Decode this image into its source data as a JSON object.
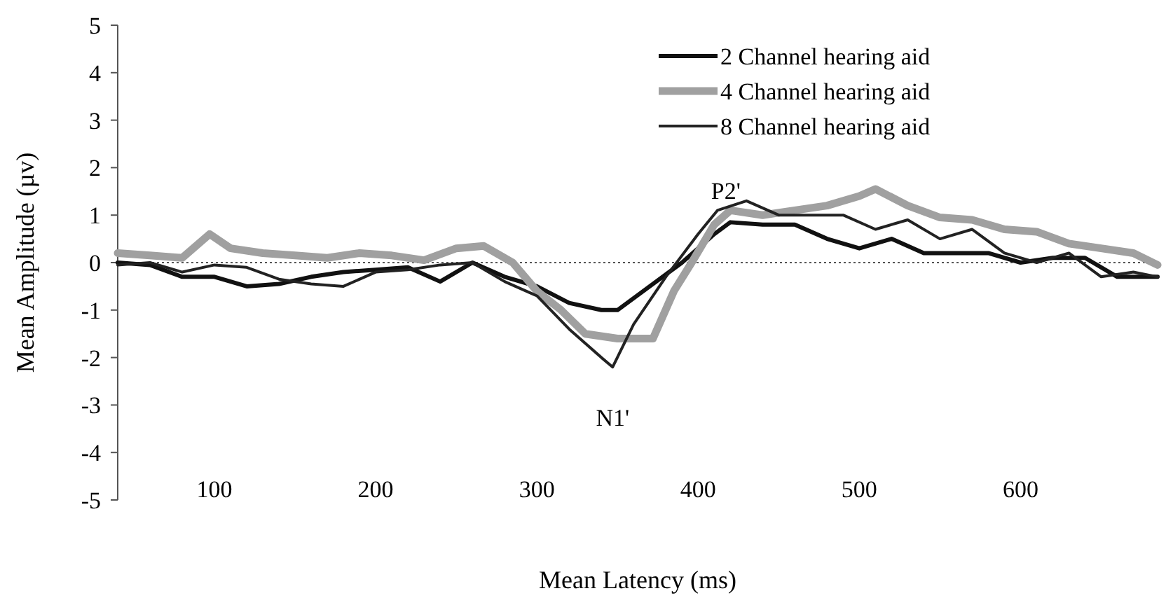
{
  "chart_data": {
    "type": "line",
    "xlabel": "Mean Latency (ms)",
    "ylabel": "Mean Amplitude (µv)",
    "xlim": [
      40,
      685
    ],
    "xticks": [
      100,
      200,
      300,
      400,
      500,
      600
    ],
    "ylim": [
      -5,
      5
    ],
    "yticks": [
      -5,
      -4,
      -3,
      -2,
      -1,
      0,
      1,
      2,
      3,
      4,
      5
    ],
    "grid": false,
    "legend": "top right",
    "line_style": "solid",
    "ref_lines": [
      {
        "axis": "y",
        "value": 0,
        "line_style": "dotted",
        "color": "#555555"
      }
    ],
    "annotations": [
      {
        "text": "N1'",
        "x": 347,
        "y": -2.2
      },
      {
        "text": "P2'",
        "x": 412,
        "y": 1.1
      }
    ],
    "series": [
      {
        "name": "2 Channel hearing aid",
        "color": "#111111",
        "x": [
          40,
          60,
          80,
          100,
          120,
          140,
          160,
          180,
          200,
          220,
          240,
          260,
          280,
          300,
          320,
          340,
          350,
          370,
          390,
          410,
          420,
          440,
          460,
          480,
          500,
          520,
          540,
          560,
          580,
          600,
          620,
          640,
          660,
          685
        ],
        "values": [
          0,
          -0.05,
          -0.3,
          -0.3,
          -0.5,
          -0.45,
          -0.3,
          -0.2,
          -0.15,
          -0.1,
          -0.4,
          0,
          -0.3,
          -0.5,
          -0.85,
          -1.0,
          -1.0,
          -0.5,
          0,
          0.6,
          0.85,
          0.8,
          0.8,
          0.5,
          0.3,
          0.5,
          0.2,
          0.2,
          0.2,
          0,
          0.1,
          0.1,
          -0.3,
          -0.3
        ]
      },
      {
        "name": "4 Channel hearing aid",
        "color": "#a0a0a0",
        "x": [
          40,
          60,
          80,
          97,
          110,
          130,
          150,
          170,
          190,
          210,
          230,
          250,
          267,
          285,
          300,
          315,
          330,
          350,
          372,
          385,
          396,
          410,
          420,
          440,
          460,
          480,
          500,
          510,
          530,
          550,
          570,
          590,
          610,
          630,
          650,
          670,
          685
        ],
        "values": [
          0.2,
          0.15,
          0.1,
          0.6,
          0.3,
          0.2,
          0.15,
          0.1,
          0.2,
          0.15,
          0.05,
          0.3,
          0.35,
          0,
          -0.6,
          -1.0,
          -1.5,
          -1.6,
          -1.6,
          -0.6,
          0,
          0.8,
          1.1,
          1.0,
          1.1,
          1.2,
          1.4,
          1.55,
          1.2,
          0.95,
          0.9,
          0.7,
          0.65,
          0.4,
          0.3,
          0.2,
          -0.05
        ]
      },
      {
        "name": "8 Channel hearing aid",
        "color": "#222222",
        "x": [
          40,
          60,
          80,
          100,
          120,
          140,
          160,
          180,
          200,
          220,
          240,
          260,
          280,
          300,
          320,
          340,
          347,
          360,
          380,
          400,
          412,
          430,
          450,
          470,
          490,
          510,
          530,
          550,
          570,
          590,
          610,
          630,
          650,
          670,
          685
        ],
        "values": [
          -0.05,
          0,
          -0.2,
          -0.05,
          -0.1,
          -0.35,
          -0.45,
          -0.5,
          -0.2,
          -0.15,
          -0.05,
          0,
          -0.4,
          -0.7,
          -1.4,
          -2.0,
          -2.2,
          -1.3,
          -0.3,
          0.6,
          1.1,
          1.3,
          1.0,
          1.0,
          1.0,
          0.7,
          0.9,
          0.5,
          0.7,
          0.2,
          0,
          0.2,
          -0.3,
          -0.2,
          -0.3
        ]
      }
    ]
  }
}
